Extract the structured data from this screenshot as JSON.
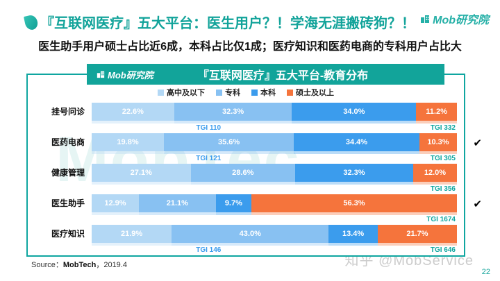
{
  "page": {
    "title": "『互联网医疗』五大平台：医生用户？！学海无涯搬砖狗？！",
    "subtitle": "医生助手用户硕士占比近6成，本科占比仅1成；医疗知识和医药电商的专科用户占比大",
    "brand": "Mob研究院",
    "background_watermark": "MobTec",
    "source_label": "Source：",
    "source_name": "MobTech",
    "source_date": "，2019.4",
    "site_watermark": "知乎 @MobService",
    "page_number": "22"
  },
  "chart_data": {
    "type": "bar",
    "orientation": "horizontal-stacked",
    "title": "『互联网医疗』五大平台-教育分布",
    "brand": "Mob研究院",
    "unit": "%",
    "legend_position": "top",
    "legend": [
      "高中及以下",
      "专科",
      "本科",
      "硕士及以上"
    ],
    "categories": [
      "挂号问诊",
      "医药电商",
      "健康管理",
      "医生助手",
      "医疗知识"
    ],
    "series": [
      {
        "name": "高中及以下",
        "values": [
          22.6,
          19.8,
          27.1,
          12.9,
          21.9
        ]
      },
      {
        "name": "专科",
        "values": [
          32.3,
          35.6,
          28.6,
          21.1,
          43.0
        ]
      },
      {
        "name": "本科",
        "values": [
          34.0,
          34.4,
          32.3,
          9.7,
          13.4
        ]
      },
      {
        "name": "硕士及以上",
        "values": [
          11.2,
          10.3,
          12.0,
          56.3,
          21.7
        ]
      }
    ],
    "tgi_center": [
      "TGI 110",
      "TGI 121",
      "",
      "",
      "TGI 146"
    ],
    "tgi_right": [
      "TGI 332",
      "TGI 305",
      "TGI 356",
      "TGI 1674",
      "TGI 646"
    ],
    "checked_rows": [
      1,
      3
    ],
    "xlim": [
      0,
      100
    ],
    "colors": {
      "segments": [
        "#b3d8f5",
        "#88c1f2",
        "#3b9ced",
        "#f5743c"
      ],
      "teal": "#12a49a",
      "tgi_center_color": "#3b9ced",
      "tgi_right_color": "#0fa6a0",
      "checkmark": "#000000"
    }
  }
}
